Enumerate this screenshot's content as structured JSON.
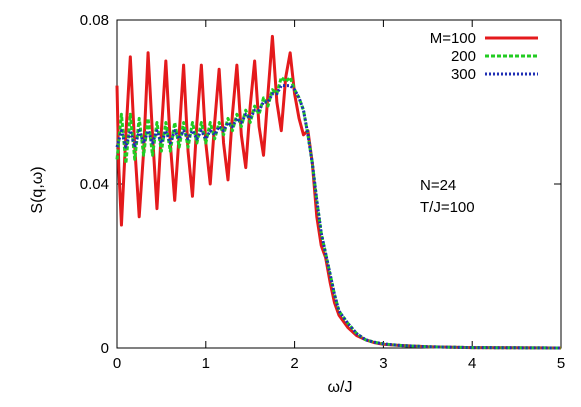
{
  "chart_data": {
    "type": "line",
    "xlabel": "ω/J",
    "ylabel": "S(q,ω)",
    "xlim": [
      0,
      5
    ],
    "ylim": [
      0,
      0.08
    ],
    "x_ticks": [
      "0",
      "1",
      "2",
      "3",
      "4",
      "5"
    ],
    "y_ticks": [
      "0",
      "0.04",
      "0.08"
    ],
    "x_tick_values": [
      0,
      1,
      2,
      3,
      4,
      5
    ],
    "y_tick_values": [
      0,
      0.04,
      0.08
    ],
    "grid": false,
    "legend_position": "top-right",
    "annotations": [
      "N=24",
      "T/J=100"
    ],
    "series": [
      {
        "name": "M=100",
        "color": "#e41a1c",
        "style": "solid",
        "x": [
          0,
          0.02,
          0.05,
          0.1,
          0.15,
          0.2,
          0.25,
          0.3,
          0.35,
          0.4,
          0.45,
          0.5,
          0.55,
          0.6,
          0.65,
          0.7,
          0.75,
          0.8,
          0.85,
          0.9,
          0.95,
          1.0,
          1.05,
          1.1,
          1.15,
          1.2,
          1.25,
          1.3,
          1.35,
          1.4,
          1.45,
          1.5,
          1.55,
          1.6,
          1.65,
          1.7,
          1.75,
          1.8,
          1.85,
          1.9,
          1.95,
          2.0,
          2.05,
          2.1,
          2.15,
          2.2,
          2.25,
          2.3,
          2.35,
          2.4,
          2.45,
          2.5,
          2.6,
          2.7,
          2.8,
          2.9,
          3.0,
          3.2,
          3.5,
          4.0,
          4.5,
          5.0
        ],
        "y": [
          0.064,
          0.044,
          0.03,
          0.052,
          0.071,
          0.049,
          0.032,
          0.048,
          0.072,
          0.052,
          0.034,
          0.053,
          0.07,
          0.05,
          0.036,
          0.052,
          0.069,
          0.048,
          0.037,
          0.055,
          0.069,
          0.05,
          0.04,
          0.055,
          0.068,
          0.05,
          0.041,
          0.057,
          0.069,
          0.052,
          0.044,
          0.059,
          0.07,
          0.054,
          0.047,
          0.062,
          0.076,
          0.06,
          0.053,
          0.066,
          0.072,
          0.062,
          0.056,
          0.052,
          0.053,
          0.045,
          0.032,
          0.025,
          0.022,
          0.016,
          0.011,
          0.008,
          0.005,
          0.003,
          0.002,
          0.0013,
          0.0009,
          0.0006,
          0.0003,
          0.0001,
          5e-05,
          0.0
        ],
        "width": 3
      },
      {
        "name": "200",
        "color": "#22cc22",
        "style": "dashed",
        "x": [
          0,
          0.05,
          0.1,
          0.15,
          0.2,
          0.25,
          0.3,
          0.35,
          0.4,
          0.45,
          0.5,
          0.55,
          0.6,
          0.65,
          0.7,
          0.75,
          0.8,
          0.85,
          0.9,
          0.95,
          1.0,
          1.05,
          1.1,
          1.15,
          1.2,
          1.25,
          1.3,
          1.35,
          1.4,
          1.45,
          1.5,
          1.55,
          1.6,
          1.65,
          1.7,
          1.75,
          1.8,
          1.85,
          1.9,
          1.95,
          2.0,
          2.05,
          2.1,
          2.15,
          2.2,
          2.25,
          2.3,
          2.35,
          2.4,
          2.45,
          2.5,
          2.6,
          2.7,
          2.8,
          2.9,
          3.0,
          3.2,
          3.5,
          4.0,
          4.5,
          5.0
        ],
        "y": [
          0.046,
          0.057,
          0.045,
          0.057,
          0.046,
          0.056,
          0.047,
          0.056,
          0.047,
          0.055,
          0.048,
          0.055,
          0.048,
          0.055,
          0.049,
          0.055,
          0.049,
          0.055,
          0.05,
          0.055,
          0.05,
          0.055,
          0.051,
          0.055,
          0.052,
          0.056,
          0.053,
          0.057,
          0.054,
          0.058,
          0.055,
          0.059,
          0.057,
          0.061,
          0.059,
          0.063,
          0.062,
          0.066,
          0.065,
          0.066,
          0.063,
          0.061,
          0.058,
          0.052,
          0.045,
          0.036,
          0.028,
          0.023,
          0.018,
          0.013,
          0.009,
          0.006,
          0.0035,
          0.002,
          0.0014,
          0.001,
          0.0006,
          0.0003,
          0.0001,
          5e-05,
          0.0
        ],
        "width": 3
      },
      {
        "name": "300",
        "color": "#1f2fb4",
        "style": "dotted",
        "x": [
          0,
          0.05,
          0.1,
          0.15,
          0.2,
          0.25,
          0.3,
          0.35,
          0.4,
          0.45,
          0.5,
          0.55,
          0.6,
          0.65,
          0.7,
          0.75,
          0.8,
          0.85,
          0.9,
          0.95,
          1.0,
          1.05,
          1.1,
          1.15,
          1.2,
          1.25,
          1.3,
          1.35,
          1.4,
          1.45,
          1.5,
          1.55,
          1.6,
          1.65,
          1.7,
          1.75,
          1.8,
          1.85,
          1.9,
          1.95,
          2.0,
          2.05,
          2.1,
          2.15,
          2.2,
          2.25,
          2.3,
          2.35,
          2.4,
          2.45,
          2.5,
          2.6,
          2.7,
          2.8,
          2.9,
          3.0,
          3.2,
          3.5,
          4.0,
          4.5,
          5.0
        ],
        "y": [
          0.049,
          0.053,
          0.049,
          0.053,
          0.049,
          0.053,
          0.05,
          0.053,
          0.05,
          0.053,
          0.05,
          0.053,
          0.05,
          0.053,
          0.051,
          0.053,
          0.051,
          0.053,
          0.051,
          0.053,
          0.051,
          0.053,
          0.052,
          0.054,
          0.053,
          0.055,
          0.054,
          0.056,
          0.055,
          0.057,
          0.056,
          0.058,
          0.058,
          0.06,
          0.06,
          0.062,
          0.062,
          0.064,
          0.064,
          0.064,
          0.063,
          0.061,
          0.058,
          0.052,
          0.045,
          0.036,
          0.028,
          0.023,
          0.018,
          0.013,
          0.009,
          0.006,
          0.0035,
          0.002,
          0.0014,
          0.001,
          0.0006,
          0.0003,
          0.0001,
          5e-05,
          0.0
        ],
        "width": 3
      }
    ]
  }
}
